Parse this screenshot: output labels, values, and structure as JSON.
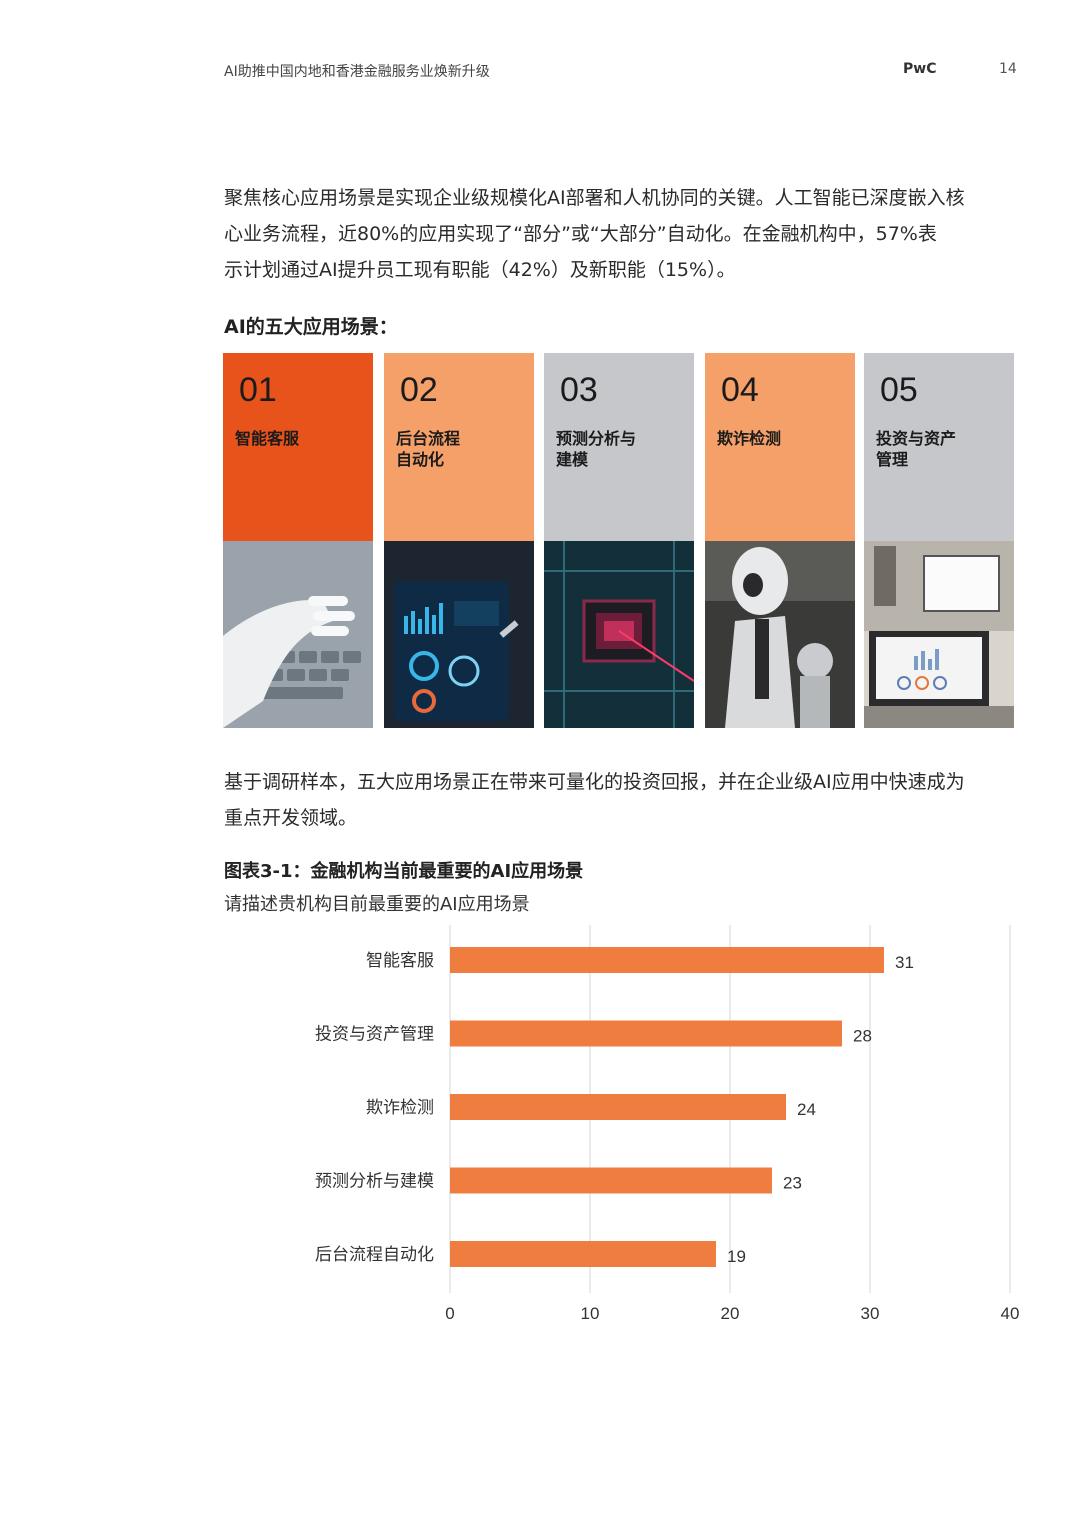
{
  "header": {
    "title": "AI助推中国内地和香港金融服务业焕新升级",
    "brand": "PwC",
    "page": "14"
  },
  "intro": {
    "lines": [
      "聚焦核心应用场景是实现企业级规模化AI部署和人机协同的关键。人工智能已深度嵌入核",
      "心业务流程，近80%的应用实现了“部分”或“大部分”自动化。在金融机构中，57%表",
      "示计划通过AI提升员工现有职能（42%）及新职能（15%）。"
    ]
  },
  "scenarios": {
    "title": "AI的五大应用场景：",
    "items": [
      {
        "num": "01",
        "label": "智能客服",
        "color": "#e8531c",
        "image": "robot-hand-keyboard"
      },
      {
        "num": "02",
        "label": "后台流程\n自动化",
        "color": "#f5a068",
        "image": "dashboard-tablet"
      },
      {
        "num": "03",
        "label": "预测分析与\n建模",
        "color": "#c5c7cb",
        "image": "circuit-chip"
      },
      {
        "num": "04",
        "label": "欺诈检测",
        "color": "#f5a068",
        "image": "humanoid-robot"
      },
      {
        "num": "05",
        "label": "投资与资产\n管理",
        "color": "#c5c7cb",
        "image": "laptop-charts"
      }
    ]
  },
  "para2": {
    "lines": [
      "基于调研样本，五大应用场景正在带来可量化的投资回报，并在企业级AI应用中快速成为",
      "重点开发领域。"
    ]
  },
  "chart_data": {
    "type": "bar",
    "orientation": "horizontal",
    "title": "图表3-1：金融机构当前最重要的AI应用场景",
    "subtitle": "请描述贵机构目前最重要的AI应用场景",
    "categories": [
      "智能客服",
      "投资与资产管理",
      "欺诈检测",
      "预测分析与建模",
      "后台流程自动化"
    ],
    "values": [
      31,
      28,
      24,
      23,
      19
    ],
    "xlim": [
      0,
      40
    ],
    "xticks": [
      0,
      10,
      20,
      30,
      40
    ],
    "grid": true,
    "bar_color": "#ef7d3f",
    "data_labels": true
  }
}
